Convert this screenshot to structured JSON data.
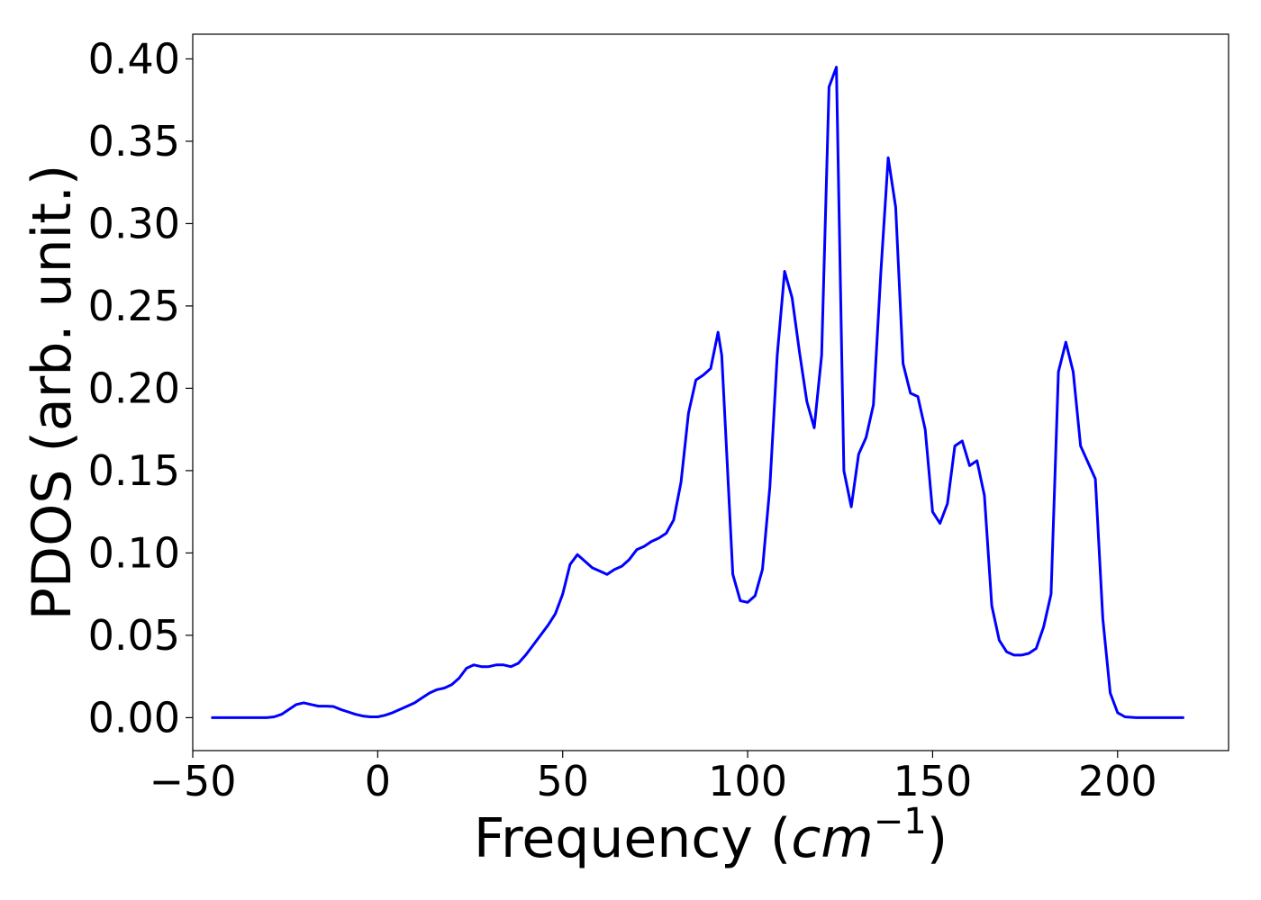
{
  "chart_data": {
    "type": "line",
    "title": "",
    "xlabel": "Frequency",
    "xlabel_unit_base": "cm",
    "xlabel_unit_exponent": "−1",
    "ylabel": "PDOS (arb. unit.)",
    "xlim": [
      -50,
      230
    ],
    "ylim": [
      -0.02,
      0.415
    ],
    "xticks": [
      -50,
      0,
      50,
      100,
      150,
      200
    ],
    "xtick_labels": [
      "−50",
      "0",
      "50",
      "100",
      "150",
      "200"
    ],
    "yticks": [
      0.0,
      0.05,
      0.1,
      0.15,
      0.2,
      0.25,
      0.3,
      0.35,
      0.4
    ],
    "ytick_labels": [
      "0.00",
      "0.05",
      "0.10",
      "0.15",
      "0.20",
      "0.25",
      "0.30",
      "0.35",
      "0.40"
    ],
    "grid": false,
    "legend": "none",
    "series": [
      {
        "color": "#0000ff",
        "x": [
          -45,
          -30,
          -28,
          -26,
          -24,
          -22,
          -20,
          -18,
          -16,
          -14,
          -12,
          -10,
          -8,
          -6,
          -4,
          -2,
          0,
          2,
          4,
          6,
          8,
          10,
          12,
          14,
          16,
          18,
          20,
          22,
          24,
          26,
          28,
          30,
          32,
          34,
          36,
          38,
          40,
          42,
          44,
          46,
          48,
          50,
          52,
          54,
          56,
          58,
          60,
          62,
          64,
          66,
          68,
          70,
          72,
          74,
          76,
          78,
          80,
          82,
          84,
          86,
          88,
          90,
          92,
          93,
          94,
          96,
          98,
          100,
          102,
          104,
          106,
          108,
          110,
          112,
          114,
          116,
          118,
          120,
          122,
          124,
          126,
          128,
          130,
          132,
          134,
          136,
          138,
          140,
          142,
          144,
          146,
          148,
          150,
          152,
          154,
          156,
          158,
          160,
          162,
          164,
          166,
          168,
          170,
          172,
          174,
          176,
          178,
          180,
          182,
          184,
          186,
          188,
          190,
          192,
          194,
          196,
          198,
          200,
          202,
          205,
          210,
          218
        ],
        "y": [
          0.0,
          0.0,
          0.0005,
          0.002,
          0.005,
          0.008,
          0.009,
          0.008,
          0.007,
          0.007,
          0.0068,
          0.005,
          0.0035,
          0.002,
          0.001,
          0.0005,
          0.0005,
          0.0015,
          0.003,
          0.005,
          0.007,
          0.009,
          0.012,
          0.015,
          0.017,
          0.018,
          0.02,
          0.024,
          0.03,
          0.032,
          0.031,
          0.031,
          0.032,
          0.032,
          0.031,
          0.033,
          0.038,
          0.044,
          0.05,
          0.056,
          0.063,
          0.075,
          0.093,
          0.099,
          0.095,
          0.091,
          0.089,
          0.087,
          0.09,
          0.092,
          0.096,
          0.102,
          0.104,
          0.107,
          0.109,
          0.112,
          0.12,
          0.143,
          0.185,
          0.205,
          0.208,
          0.212,
          0.234,
          0.22,
          0.176,
          0.087,
          0.071,
          0.07,
          0.074,
          0.09,
          0.14,
          0.22,
          0.271,
          0.255,
          0.222,
          0.192,
          0.176,
          0.22,
          0.383,
          0.395,
          0.15,
          0.128,
          0.16,
          0.17,
          0.19,
          0.27,
          0.34,
          0.31,
          0.215,
          0.197,
          0.195,
          0.175,
          0.125,
          0.118,
          0.13,
          0.165,
          0.168,
          0.153,
          0.156,
          0.135,
          0.068,
          0.047,
          0.04,
          0.038,
          0.038,
          0.039,
          0.042,
          0.055,
          0.075,
          0.21,
          0.228,
          0.21,
          0.165,
          0.155,
          0.145,
          0.06,
          0.015,
          0.003,
          0.0005,
          0.0,
          0.0,
          0.0
        ]
      }
    ]
  }
}
